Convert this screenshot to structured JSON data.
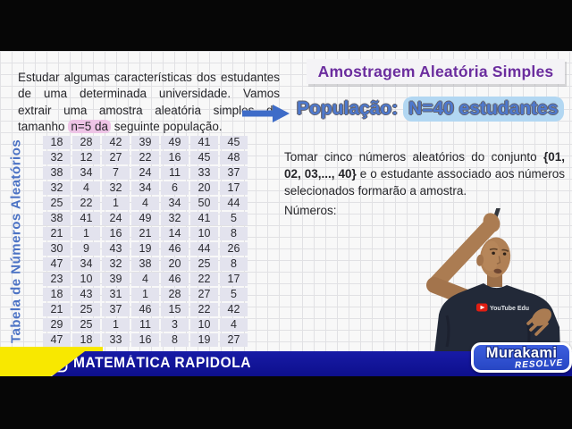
{
  "header": {
    "title": "Amostragem Aleatória Simples",
    "population_label": "População:",
    "population_value": "N=40 estudantes"
  },
  "intro": {
    "before": "Estudar algumas características dos estudantes de uma determinada universidade. Vamos extrair uma amostra aleatória simples de tamanho",
    "highlight": "n=5 da",
    "after": "seguinte população."
  },
  "random_table": {
    "label": "Tabela de Números Aleatórios",
    "rows": [
      [
        18,
        28,
        42,
        39,
        49,
        41,
        45
      ],
      [
        32,
        12,
        27,
        22,
        16,
        45,
        48
      ],
      [
        38,
        34,
        7,
        24,
        11,
        33,
        37
      ],
      [
        32,
        4,
        32,
        34,
        6,
        20,
        17
      ],
      [
        25,
        22,
        1,
        4,
        34,
        50,
        44
      ],
      [
        38,
        41,
        24,
        49,
        32,
        41,
        5
      ],
      [
        21,
        1,
        16,
        21,
        14,
        10,
        8
      ],
      [
        30,
        9,
        43,
        19,
        46,
        44,
        26
      ],
      [
        47,
        34,
        32,
        38,
        20,
        25,
        8
      ],
      [
        23,
        10,
        39,
        4,
        46,
        22,
        17
      ],
      [
        18,
        43,
        31,
        1,
        28,
        27,
        5
      ],
      [
        21,
        25,
        37,
        46,
        15,
        22,
        42
      ],
      [
        29,
        25,
        1,
        11,
        3,
        10,
        4
      ],
      [
        47,
        18,
        33,
        16,
        8,
        19,
        27
      ]
    ]
  },
  "instruction": {
    "before": "Tomar cinco números aleatórios do conjunto",
    "set": "{01, 02, 03,..., 40}",
    "after": "e o estudante associado aos números selecionados formarão a amostra.",
    "numbers_label": "Números:"
  },
  "footer": {
    "channel": "MATEMÁTICA RAPIDOLA",
    "logo_title": "Murakami",
    "logo_subtitle": "RESOLVE"
  },
  "person": {
    "shirt_text": "YouTube Edu"
  },
  "colors": {
    "title_purple": "#6b2d9e",
    "population_blue": "#4d79cf",
    "banner_navy": "#10129a",
    "accent_yellow": "#f8e800",
    "logo_blue": "#2d4fd0",
    "table_cell_bg": "#e3e3ee",
    "highlight_pink": "#eec4e6",
    "highlight_blue": "#b2d7f2",
    "arrow_blue": "#3e6cc8"
  }
}
